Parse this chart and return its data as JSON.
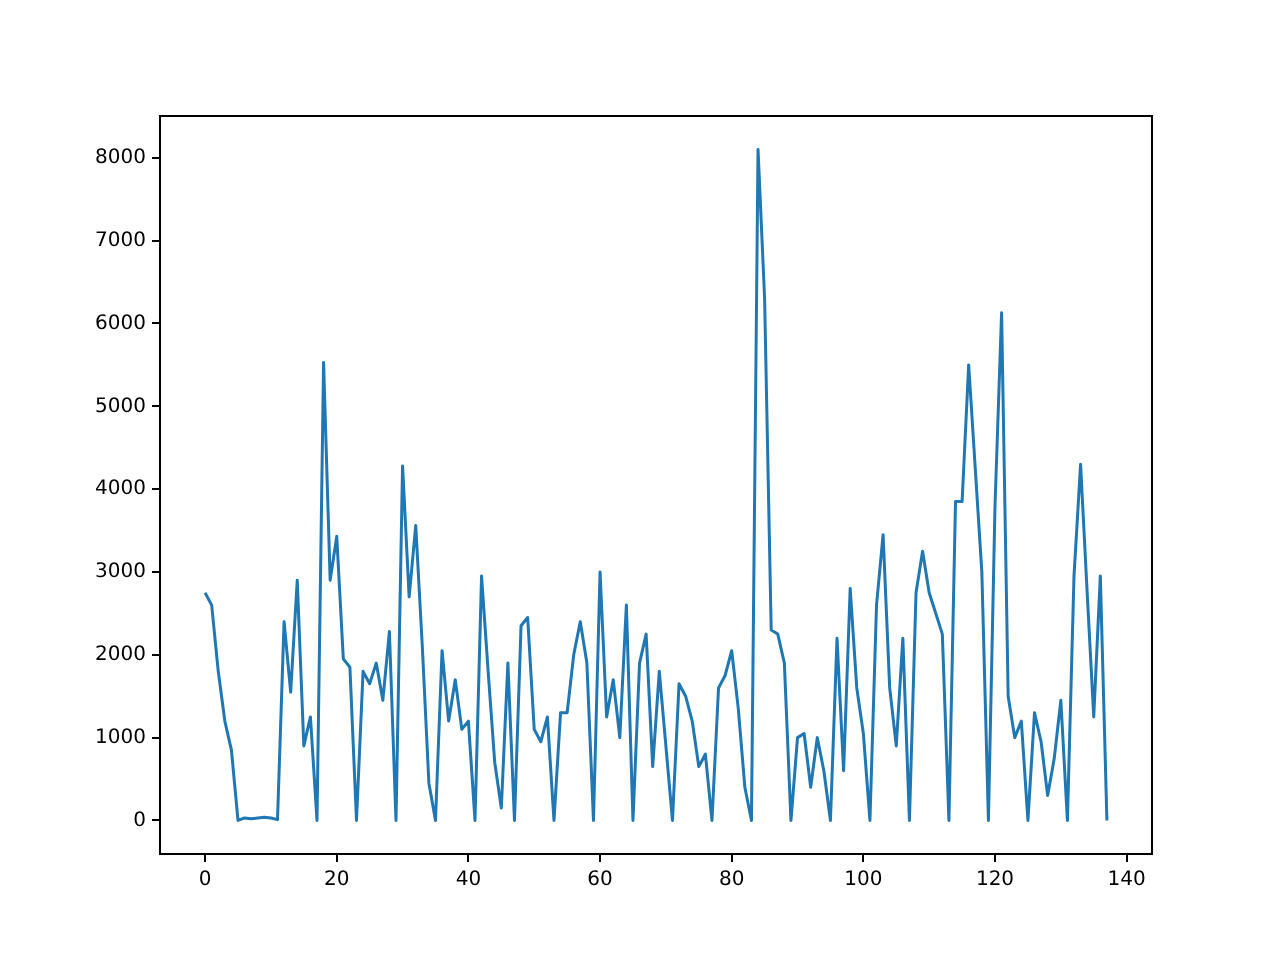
{
  "chart_data": {
    "type": "line",
    "x": [
      0,
      1,
      2,
      3,
      4,
      5,
      6,
      7,
      8,
      9,
      10,
      11,
      12,
      13,
      14,
      15,
      16,
      17,
      18,
      19,
      20,
      21,
      22,
      23,
      24,
      25,
      26,
      27,
      28,
      29,
      30,
      31,
      32,
      33,
      34,
      35,
      36,
      37,
      38,
      39,
      40,
      41,
      42,
      43,
      44,
      45,
      46,
      47,
      48,
      49,
      50,
      51,
      52,
      53,
      54,
      55,
      56,
      57,
      58,
      59,
      60,
      61,
      62,
      63,
      64,
      65,
      66,
      67,
      68,
      69,
      70,
      71,
      72,
      73,
      74,
      75,
      76,
      77,
      78,
      79,
      80,
      81,
      82,
      83,
      84,
      85,
      86,
      87,
      88,
      89,
      90,
      91,
      92,
      93,
      94,
      95,
      96,
      97,
      98,
      99,
      100,
      101,
      102,
      103,
      104,
      105,
      106,
      107,
      108,
      109,
      110,
      111,
      112,
      113,
      114,
      115,
      116,
      117,
      118,
      119,
      120,
      121,
      122,
      123,
      124,
      125,
      126,
      127,
      128,
      129,
      130,
      131,
      132,
      133,
      134,
      135,
      136,
      137
    ],
    "series": [
      {
        "color": "#1f77b4",
        "values": [
          2750,
          2600,
          1800,
          1200,
          850,
          0,
          30,
          20,
          30,
          40,
          30,
          10,
          2400,
          1550,
          2900,
          900,
          1250,
          0,
          5530,
          2900,
          3430,
          1950,
          1850,
          0,
          1800,
          1650,
          1900,
          1450,
          2280,
          0,
          4280,
          2700,
          3560,
          2100,
          450,
          0,
          2050,
          1200,
          1700,
          1100,
          1200,
          0,
          2950,
          1800,
          700,
          150,
          1900,
          0,
          2350,
          2450,
          1100,
          950,
          1250,
          0,
          1300,
          1300,
          2000,
          2400,
          1900,
          0,
          3000,
          1250,
          1700,
          1000,
          2600,
          0,
          1900,
          2250,
          650,
          1800,
          900,
          0,
          1650,
          1500,
          1200,
          650,
          800,
          0,
          1600,
          1750,
          2050,
          1350,
          400,
          0,
          8100,
          6300,
          2300,
          2250,
          1900,
          0,
          1000,
          1050,
          400,
          1000,
          600,
          0,
          2200,
          600,
          2800,
          1600,
          1050,
          0,
          2600,
          3450,
          1600,
          900,
          2200,
          0,
          2750,
          3250,
          2750,
          2500,
          2250,
          0,
          3850,
          3850,
          5500,
          4250,
          3000,
          0,
          3800,
          6130,
          1500,
          1000,
          1200,
          0,
          1300,
          950,
          300,
          750,
          1450,
          0,
          2950,
          4300,
          2750,
          1250,
          2950,
          0
        ]
      }
    ],
    "xlim": [
      -6.85,
      143.85
    ],
    "xticks": [
      0,
      20,
      40,
      60,
      80,
      100,
      120,
      140
    ],
    "ylim": [
      -405,
      8505
    ],
    "yticks": [
      0,
      1000,
      2000,
      3000,
      4000,
      5000,
      6000,
      7000,
      8000
    ],
    "grid": false,
    "legend": false,
    "marker": "none",
    "line_style": "solid"
  }
}
